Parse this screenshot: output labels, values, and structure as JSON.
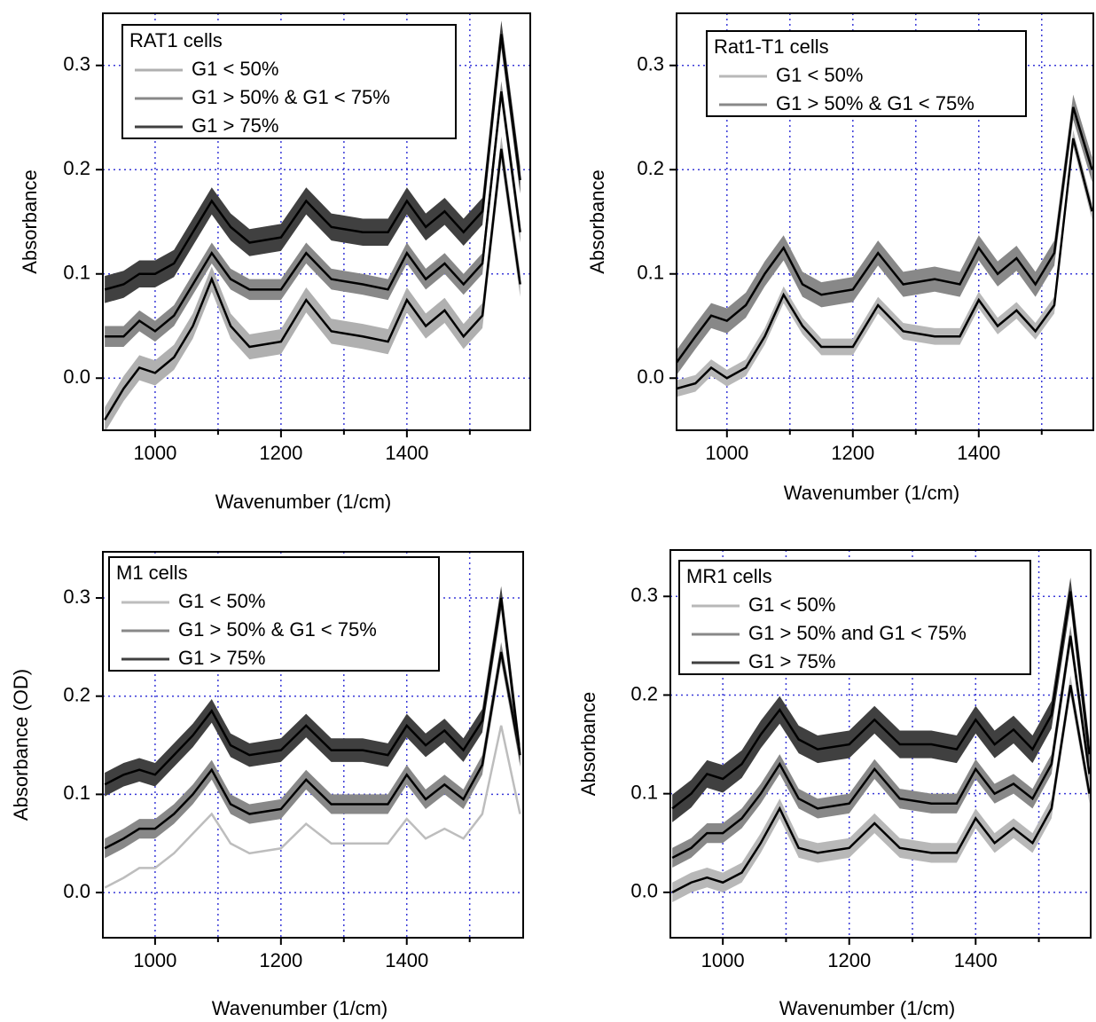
{
  "chart_data": [
    {
      "type": "line",
      "legend_title": "RAT1 cells",
      "ylabel": "Absorbance",
      "xlabel": "Wavenumber (1/cm)",
      "xlim": [
        917,
        1596
      ],
      "ylim": [
        -0.05,
        0.35
      ],
      "xticks": [
        1000,
        1200,
        1400
      ],
      "xminorticks": [
        1100,
        1300,
        1500
      ],
      "yticks": [
        {
          "value": 0,
          "label": "0.0"
        },
        0.1,
        0.2,
        0.3
      ],
      "x": [
        920,
        950,
        975,
        1000,
        1030,
        1060,
        1090,
        1120,
        1150,
        1200,
        1240,
        1280,
        1330,
        1370,
        1400,
        1430,
        1460,
        1490,
        1520,
        1550,
        1580
      ],
      "series": [
        {
          "name": "G1 < 50%",
          "color": "#b0b0b0",
          "error": 0.012,
          "values": [
            -0.04,
            -0.01,
            0.01,
            0.005,
            0.02,
            0.05,
            0.095,
            0.05,
            0.03,
            0.035,
            0.075,
            0.045,
            0.04,
            0.035,
            0.075,
            0.05,
            0.065,
            0.04,
            0.06,
            0.22,
            0.09
          ]
        },
        {
          "name": "G1 > 50% & G1 < 75%",
          "color": "#888888",
          "error": 0.01,
          "values": [
            0.04,
            0.04,
            0.055,
            0.045,
            0.06,
            0.09,
            0.12,
            0.095,
            0.085,
            0.085,
            0.12,
            0.095,
            0.09,
            0.085,
            0.12,
            0.095,
            0.11,
            0.09,
            0.11,
            0.275,
            0.14
          ]
        },
        {
          "name": "G1 > 75%",
          "color": "#404040",
          "error": 0.013,
          "values": [
            0.085,
            0.09,
            0.1,
            0.1,
            0.11,
            0.14,
            0.17,
            0.145,
            0.13,
            0.135,
            0.17,
            0.145,
            0.14,
            0.14,
            0.17,
            0.145,
            0.16,
            0.14,
            0.16,
            0.33,
            0.19
          ]
        }
      ]
    },
    {
      "type": "line",
      "legend_title": "Rat1-T1 cells",
      "ylabel": "Absorbance",
      "xlabel": "Wavenumber (1/cm)",
      "xlim": [
        920,
        1582
      ],
      "ylim": [
        -0.05,
        0.35
      ],
      "xticks": [
        1000,
        1200,
        1400
      ],
      "xminorticks": [
        1100,
        1300,
        1500
      ],
      "yticks": [
        {
          "value": 0,
          "label": "0.0"
        },
        0.1,
        0.2,
        0.3
      ],
      "x": [
        920,
        950,
        975,
        1000,
        1030,
        1060,
        1090,
        1120,
        1150,
        1200,
        1240,
        1280,
        1330,
        1370,
        1400,
        1430,
        1460,
        1490,
        1520,
        1550,
        1580
      ],
      "series": [
        {
          "name": "G1 < 50%",
          "color": "#b8b8b8",
          "error": 0.008,
          "values": [
            -0.01,
            -0.005,
            0.01,
            0.0,
            0.01,
            0.04,
            0.08,
            0.05,
            0.03,
            0.03,
            0.07,
            0.045,
            0.04,
            0.04,
            0.075,
            0.05,
            0.065,
            0.045,
            0.07,
            0.23,
            0.16
          ]
        },
        {
          "name": "G1 > 50% & G1 < 75%",
          "color": "#888888",
          "error": 0.012,
          "values": [
            0.015,
            0.04,
            0.06,
            0.055,
            0.07,
            0.1,
            0.125,
            0.09,
            0.08,
            0.085,
            0.12,
            0.09,
            0.095,
            0.09,
            0.125,
            0.1,
            0.115,
            0.09,
            0.12,
            0.26,
            0.2
          ]
        }
      ]
    },
    {
      "type": "line",
      "legend_title": "M1 cells",
      "ylabel": "Absorbance (OD)",
      "xlabel": "Wavenumber (1/cm)",
      "xlim": [
        917,
        1585
      ],
      "ylim": [
        -0.046,
        0.347
      ],
      "xticks": [
        1000,
        1200,
        1400
      ],
      "xminorticks": [
        1100,
        1300,
        1500
      ],
      "yticks": [
        {
          "value": 0,
          "label": "0.0"
        },
        0.1,
        0.2,
        0.3
      ],
      "x": [
        920,
        950,
        975,
        1000,
        1030,
        1060,
        1090,
        1120,
        1150,
        1200,
        1240,
        1280,
        1330,
        1370,
        1400,
        1430,
        1460,
        1490,
        1520,
        1550,
        1580
      ],
      "series": [
        {
          "name": "G1 < 50%",
          "color": "#bdbdbd",
          "error": 0,
          "values": [
            0.005,
            0.015,
            0.025,
            0.025,
            0.04,
            0.06,
            0.08,
            0.05,
            0.04,
            0.045,
            0.07,
            0.05,
            0.05,
            0.05,
            0.075,
            0.055,
            0.065,
            0.055,
            0.08,
            0.17,
            0.08
          ]
        },
        {
          "name": "G1 > 50% & G1 < 75%",
          "color": "#888888",
          "error": 0.01,
          "values": [
            0.045,
            0.055,
            0.065,
            0.065,
            0.08,
            0.1,
            0.125,
            0.09,
            0.08,
            0.085,
            0.115,
            0.09,
            0.09,
            0.09,
            0.12,
            0.095,
            0.11,
            0.095,
            0.13,
            0.245,
            0.14
          ]
        },
        {
          "name": "G1 > 75%",
          "color": "#404040",
          "error": 0.012,
          "values": [
            0.11,
            0.12,
            0.125,
            0.12,
            0.14,
            0.16,
            0.185,
            0.15,
            0.14,
            0.145,
            0.17,
            0.145,
            0.145,
            0.14,
            0.17,
            0.15,
            0.165,
            0.145,
            0.175,
            0.3,
            0.14
          ]
        }
      ]
    },
    {
      "type": "line",
      "legend_title": "MR1 cells",
      "ylabel": "Absorbance",
      "xlabel": "Wavenumber (1/cm)",
      "xlim": [
        917,
        1582
      ],
      "ylim": [
        -0.046,
        0.347
      ],
      "xticks": [
        1000,
        1200,
        1400
      ],
      "xminorticks": [
        1100,
        1300,
        1500
      ],
      "yticks": [
        {
          "value": 0,
          "label": "0.0"
        },
        0.1,
        0.2,
        0.3
      ],
      "x": [
        920,
        950,
        975,
        1000,
        1030,
        1060,
        1090,
        1120,
        1150,
        1200,
        1240,
        1280,
        1330,
        1370,
        1400,
        1430,
        1460,
        1490,
        1520,
        1550,
        1580
      ],
      "series": [
        {
          "name": "G1 < 50%",
          "color": "#b8b8b8",
          "error": 0.01,
          "values": [
            0.0,
            0.01,
            0.015,
            0.01,
            0.02,
            0.05,
            0.085,
            0.045,
            0.04,
            0.045,
            0.07,
            0.045,
            0.04,
            0.04,
            0.075,
            0.05,
            0.065,
            0.05,
            0.085,
            0.21,
            0.1
          ]
        },
        {
          "name": "G1 > 50% and G1 < 75%",
          "color": "#888888",
          "error": 0.01,
          "values": [
            0.035,
            0.045,
            0.06,
            0.06,
            0.075,
            0.1,
            0.13,
            0.095,
            0.085,
            0.09,
            0.125,
            0.095,
            0.09,
            0.09,
            0.125,
            0.1,
            0.11,
            0.095,
            0.13,
            0.26,
            0.12
          ]
        },
        {
          "name": "G1 > 75%",
          "color": "#404040",
          "error": 0.014,
          "values": [
            0.085,
            0.1,
            0.12,
            0.115,
            0.13,
            0.16,
            0.185,
            0.155,
            0.145,
            0.15,
            0.175,
            0.15,
            0.15,
            0.145,
            0.175,
            0.15,
            0.165,
            0.145,
            0.18,
            0.305,
            0.14
          ]
        }
      ]
    }
  ]
}
